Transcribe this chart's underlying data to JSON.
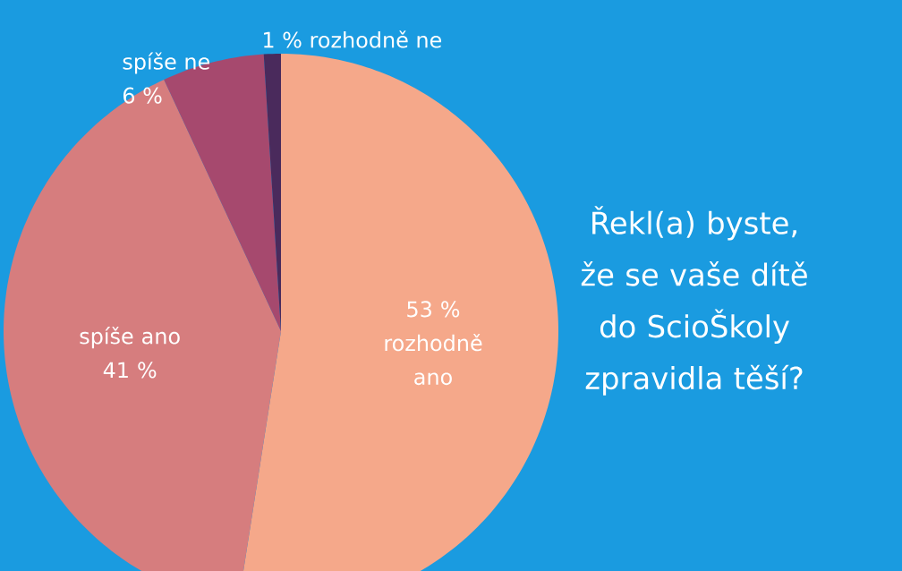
{
  "chart_data": {
    "type": "pie",
    "title": "Řekl(a) byste, že se vaše dítě do ScioŠkoly zpravidla těší?",
    "categories": [
      "rozhodně ano",
      "spíše ano",
      "spíše ne",
      "rozhodně ne"
    ],
    "values": [
      53,
      41,
      6,
      1
    ],
    "value_labels": [
      "53 %",
      "41 %",
      "6 %",
      "1 %"
    ],
    "colors": [
      "#f5a88a",
      "#d67d7e",
      "#a6496e",
      "#4a2a5c"
    ]
  }
}
